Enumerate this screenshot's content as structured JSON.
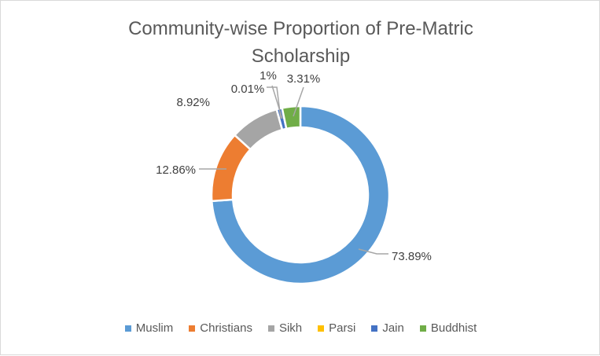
{
  "chart_data": {
    "type": "pie",
    "variant": "doughnut",
    "title": "Community-wise Proportion of Pre-Matric Scholarship",
    "categories": [
      "Muslim",
      "Christians",
      "Sikh",
      "Parsi",
      "Jain",
      "Buddhist"
    ],
    "values": [
      73.89,
      12.86,
      8.92,
      0.01,
      1.0,
      3.31
    ],
    "data_labels": [
      "73.89%",
      "12.86%",
      "8.92%",
      "0.01%",
      "1%",
      "3.31%"
    ],
    "colors": [
      "#5B9BD5",
      "#ED7D31",
      "#A5A5A5",
      "#FFC000",
      "#4472C4",
      "#70AD47"
    ],
    "legend_position": "bottom",
    "start_angle_deg": 0,
    "direction": "clockwise"
  },
  "title": {
    "line1": "Community-wise Proportion of Pre-Matric",
    "line2": "Scholarship"
  },
  "legend": [
    {
      "label": "Muslim",
      "color": "#5B9BD5"
    },
    {
      "label": "Christians",
      "color": "#ED7D31"
    },
    {
      "label": "Sikh",
      "color": "#A5A5A5"
    },
    {
      "label": "Parsi",
      "color": "#FFC000"
    },
    {
      "label": "Jain",
      "color": "#4472C4"
    },
    {
      "label": "Buddhist",
      "color": "#70AD47"
    }
  ]
}
